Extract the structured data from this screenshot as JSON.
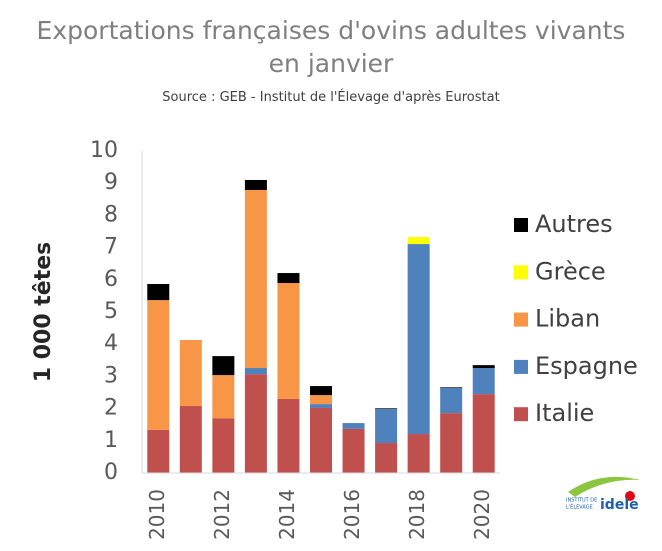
{
  "chart_data": {
    "type": "stacked_bar",
    "title": "Exportations françaises d'ovins adultes vivants en janvier",
    "subtitle": "Source : GEB - Institut de l'Élevage d'après Eurostat",
    "y_label": "1 000 têtes",
    "categories": [
      "2010",
      null,
      "2012",
      null,
      "2014",
      null,
      "2016",
      null,
      "2018",
      null,
      "2020"
    ],
    "series": [
      {
        "name": "Italie",
        "color": "#c0504d",
        "values": [
          1.34,
          2.08,
          1.7,
          3.07,
          2.3,
          2.02,
          1.37,
          0.93,
          1.21,
          1.86,
          2.45
        ]
      },
      {
        "name": "Espagne",
        "color": "#4f81bd",
        "values": [
          0,
          0,
          0,
          0.19,
          0,
          0.12,
          0.18,
          1.06,
          5.9,
          0.78,
          0.81
        ]
      },
      {
        "name": "Liban",
        "color": "#f79646",
        "values": [
          4.03,
          2.05,
          1.34,
          5.53,
          3.6,
          0.28,
          0,
          0,
          0,
          0,
          0
        ]
      },
      {
        "name": "Grèce",
        "color": "#ffff00",
        "values": [
          0,
          0,
          0,
          0,
          0,
          0,
          0,
          0,
          0.22,
          0,
          0
        ]
      },
      {
        "name": "Autres",
        "color": "#000000",
        "values": [
          0.5,
          0,
          0.59,
          0.31,
          0.31,
          0.28,
          0,
          0.02,
          0,
          0.02,
          0.09
        ]
      }
    ],
    "ylim": [
      0,
      10
    ],
    "yticks": [
      0,
      1,
      2,
      3,
      4,
      5,
      6,
      7,
      8,
      9,
      10
    ],
    "grid": false,
    "legend": "right"
  },
  "logo": {
    "line1": "INSTITUT DE",
    "line2": "L'ÉLEVAGE",
    "name": "idele"
  }
}
